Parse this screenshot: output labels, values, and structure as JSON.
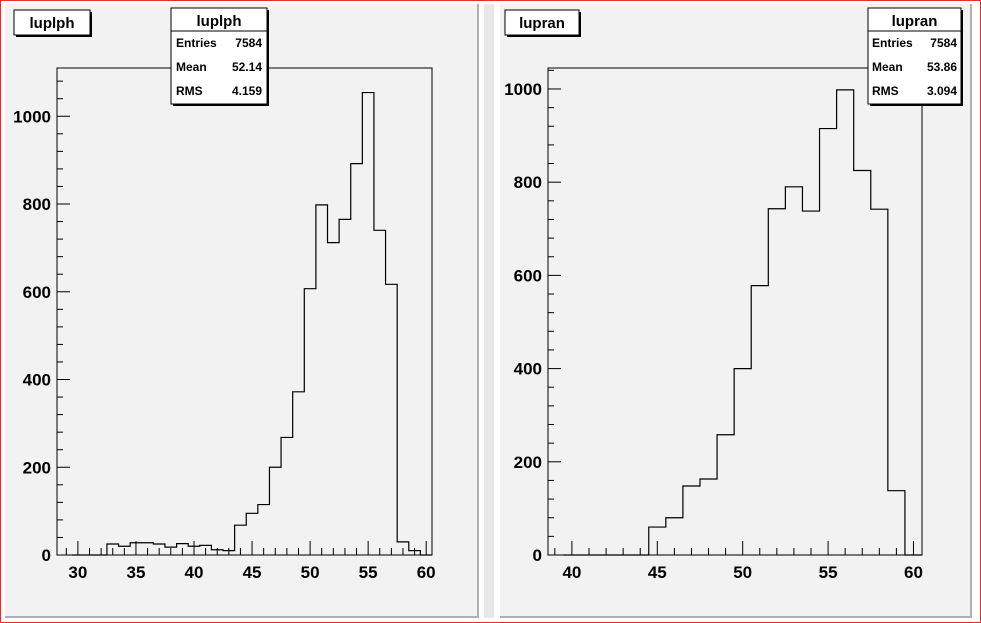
{
  "chart_data": [
    {
      "type": "bar",
      "title": "luplph",
      "stats": {
        "title": "luplph",
        "rows": [
          {
            "label": "Entries",
            "value": "7584"
          },
          {
            "label": "Mean",
            "value": "52.14"
          },
          {
            "label": "RMS",
            "value": "4.159"
          }
        ]
      },
      "bin_width": 1,
      "x_start": 29.5,
      "values": [
        0,
        0,
        0,
        25,
        20,
        28,
        28,
        25,
        18,
        26,
        20,
        22,
        12,
        10,
        68,
        95,
        115,
        200,
        268,
        372,
        607,
        798,
        712,
        765,
        892,
        1054,
        740,
        617,
        30,
        10,
        0
      ],
      "xlim": [
        28.2,
        60.5
      ],
      "ylim": [
        0,
        1110
      ],
      "xticks": [
        30,
        35,
        40,
        45,
        50,
        55,
        60
      ],
      "yticks": [
        0,
        200,
        400,
        600,
        800,
        1000
      ]
    },
    {
      "type": "bar",
      "title": "lupran",
      "stats": {
        "title": "lupran",
        "rows": [
          {
            "label": "Entries",
            "value": "7584"
          },
          {
            "label": "Mean",
            "value": "53.86"
          },
          {
            "label": "RMS",
            "value": "3.094"
          }
        ]
      },
      "bin_width": 1,
      "x_start": 39.5,
      "values": [
        0,
        0,
        0,
        0,
        0,
        60,
        80,
        148,
        163,
        258,
        400,
        578,
        743,
        790,
        738,
        915,
        998,
        825,
        742,
        138,
        0
      ],
      "xlim": [
        38.6,
        60.5
      ],
      "ylim": [
        0,
        1045
      ],
      "xticks": [
        40,
        45,
        50,
        55,
        60
      ],
      "yticks": [
        0,
        200,
        400,
        600,
        800,
        1000
      ]
    }
  ]
}
